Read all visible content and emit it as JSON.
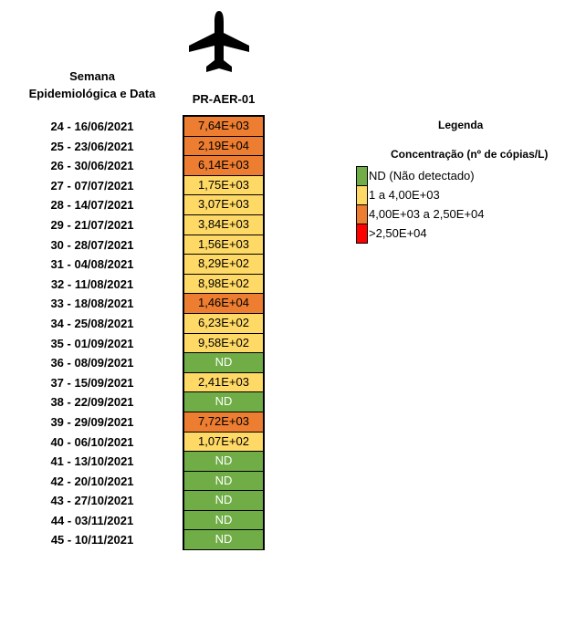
{
  "header": {
    "left_line1": "Semana",
    "left_line2": "Epidemiológica e Data",
    "column": "PR-AER-01"
  },
  "colors": {
    "green": "#70ad47",
    "yellow": "#ffd966",
    "orange": "#ed7d31",
    "red": "#ff0000"
  },
  "rows": [
    {
      "date": "24 - 16/06/2021",
      "value": "7,64E+03",
      "level": "orange"
    },
    {
      "date": "25 - 23/06/2021",
      "value": "2,19E+04",
      "level": "orange"
    },
    {
      "date": "26 - 30/06/2021",
      "value": "6,14E+03",
      "level": "orange"
    },
    {
      "date": "27 - 07/07/2021",
      "value": "1,75E+03",
      "level": "yellow"
    },
    {
      "date": "28 - 14/07/2021",
      "value": "3,07E+03",
      "level": "yellow"
    },
    {
      "date": "29 - 21/07/2021",
      "value": "3,84E+03",
      "level": "yellow"
    },
    {
      "date": "30 - 28/07/2021",
      "value": "1,56E+03",
      "level": "yellow"
    },
    {
      "date": "31 - 04/08/2021",
      "value": "8,29E+02",
      "level": "yellow"
    },
    {
      "date": "32 - 11/08/2021",
      "value": "8,98E+02",
      "level": "yellow"
    },
    {
      "date": "33 - 18/08/2021",
      "value": "1,46E+04",
      "level": "orange"
    },
    {
      "date": "34 - 25/08/2021",
      "value": "6,23E+02",
      "level": "yellow"
    },
    {
      "date": "35 - 01/09/2021",
      "value": "9,58E+02",
      "level": "yellow"
    },
    {
      "date": "36 - 08/09/2021",
      "value": "ND",
      "level": "green"
    },
    {
      "date": "37 - 15/09/2021",
      "value": "2,41E+03",
      "level": "yellow"
    },
    {
      "date": "38 - 22/09/2021",
      "value": "ND",
      "level": "green"
    },
    {
      "date": "39 - 29/09/2021",
      "value": "7,72E+03",
      "level": "orange"
    },
    {
      "date": "40 - 06/10/2021",
      "value": "1,07E+02",
      "level": "yellow"
    },
    {
      "date": "41 - 13/10/2021",
      "value": "ND",
      "level": "green"
    },
    {
      "date": "42 - 20/10/2021",
      "value": "ND",
      "level": "green"
    },
    {
      "date": "43 - 27/10/2021",
      "value": "ND",
      "level": "green"
    },
    {
      "date": "44 - 03/11/2021",
      "value": "ND",
      "level": "green"
    },
    {
      "date": "45 - 10/11/2021",
      "value": "ND",
      "level": "green"
    }
  ],
  "legend": {
    "title": "Legenda",
    "subtitle": "Concentração (nº de cópias/L)",
    "items": [
      {
        "label": "ND (Não detectado)",
        "level": "green"
      },
      {
        "label": "1 a 4,00E+03",
        "level": "yellow"
      },
      {
        "label": "4,00E+03 a 2,50E+04",
        "level": "orange"
      },
      {
        "label": ">2,50E+04",
        "level": "red"
      }
    ]
  },
  "icon": "airplane-icon"
}
